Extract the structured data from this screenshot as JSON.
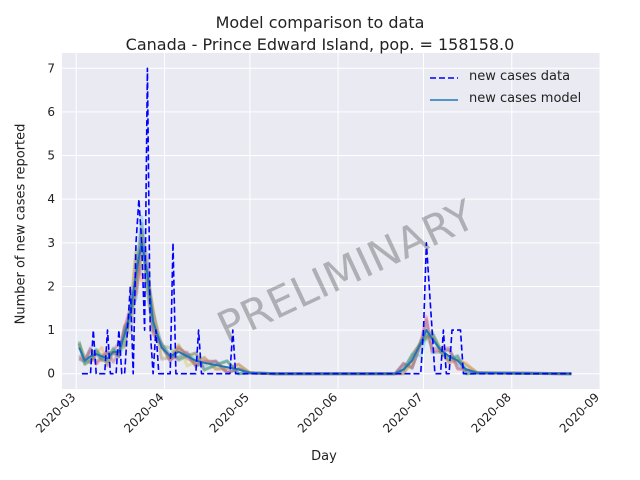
{
  "chart_data": {
    "type": "line",
    "title": "Model comparison to data",
    "subtitle": "Canada - Prince Edward Island, pop. = 158158.0",
    "xlabel": "Day",
    "ylabel": "Number of new cases reported",
    "x_ticks": [
      "2020-03",
      "2020-04",
      "2020-05",
      "2020-06",
      "2020-07",
      "2020-08",
      "2020-09"
    ],
    "y_ticks": [
      "0",
      "1",
      "2",
      "3",
      "4",
      "5",
      "6",
      "7"
    ],
    "xlim": [
      "2020-02-25",
      "2020-09-01"
    ],
    "ylim": [
      -0.35,
      7.35
    ],
    "grid": true,
    "legend_position": "top-right",
    "watermark": "PRELIMINARY",
    "colors": {
      "background": "#eaeaf2",
      "grid": "#ffffff",
      "data": "#0000ff",
      "model": "#1f77b4",
      "ensemble": [
        "#1f77b4",
        "#ff7f0e",
        "#2ca02c",
        "#d62728",
        "#9467bd",
        "#8c564b",
        "#e377c2",
        "#bcbd22",
        "#17becf",
        "#7f7f7f"
      ]
    },
    "series": [
      {
        "name": "new cases data",
        "style": "dashed",
        "points": [
          [
            "2020-03-03",
            0
          ],
          [
            "2020-03-06",
            0
          ],
          [
            "2020-03-07",
            1
          ],
          [
            "2020-03-08",
            0
          ],
          [
            "2020-03-11",
            0
          ],
          [
            "2020-03-12",
            1
          ],
          [
            "2020-03-13",
            0
          ],
          [
            "2020-03-15",
            0
          ],
          [
            "2020-03-16",
            1
          ],
          [
            "2020-03-17",
            0
          ],
          [
            "2020-03-18",
            0
          ],
          [
            "2020-03-19",
            1
          ],
          [
            "2020-03-20",
            2
          ],
          [
            "2020-03-21",
            0
          ],
          [
            "2020-03-22",
            3
          ],
          [
            "2020-03-23",
            4
          ],
          [
            "2020-03-24",
            3
          ],
          [
            "2020-03-25",
            1
          ],
          [
            "2020-03-26",
            7
          ],
          [
            "2020-03-27",
            1
          ],
          [
            "2020-03-28",
            0
          ],
          [
            "2020-03-29",
            1
          ],
          [
            "2020-03-30",
            0
          ],
          [
            "2020-04-03",
            0
          ],
          [
            "2020-04-04",
            3
          ],
          [
            "2020-04-05",
            0
          ],
          [
            "2020-04-12",
            0
          ],
          [
            "2020-04-13",
            1
          ],
          [
            "2020-04-14",
            0
          ],
          [
            "2020-04-24",
            0
          ],
          [
            "2020-04-25",
            1
          ],
          [
            "2020-04-26",
            0
          ],
          [
            "2020-06-30",
            0
          ],
          [
            "2020-07-01",
            1
          ],
          [
            "2020-07-02",
            3
          ],
          [
            "2020-07-03",
            2
          ],
          [
            "2020-07-04",
            1
          ],
          [
            "2020-07-05",
            0
          ],
          [
            "2020-07-07",
            0
          ],
          [
            "2020-07-08",
            1
          ],
          [
            "2020-07-09",
            0
          ],
          [
            "2020-07-10",
            0
          ],
          [
            "2020-07-11",
            1
          ],
          [
            "2020-07-14",
            1
          ],
          [
            "2020-07-15",
            0
          ],
          [
            "2020-08-22",
            0
          ]
        ]
      },
      {
        "name": "new cases model",
        "style": "solid",
        "points": [
          [
            "2020-03-02",
            0.6
          ],
          [
            "2020-03-04",
            0.3
          ],
          [
            "2020-03-06",
            0.4
          ],
          [
            "2020-03-08",
            0.45
          ],
          [
            "2020-03-10",
            0.4
          ],
          [
            "2020-03-12",
            0.35
          ],
          [
            "2020-03-14",
            0.5
          ],
          [
            "2020-03-16",
            0.5
          ],
          [
            "2020-03-18",
            0.9
          ],
          [
            "2020-03-20",
            1.4
          ],
          [
            "2020-03-22",
            2.3
          ],
          [
            "2020-03-24",
            3.0
          ],
          [
            "2020-03-26",
            2.3
          ],
          [
            "2020-03-28",
            1.2
          ],
          [
            "2020-03-31",
            0.6
          ],
          [
            "2020-04-03",
            0.4
          ],
          [
            "2020-04-06",
            0.5
          ],
          [
            "2020-04-09",
            0.4
          ],
          [
            "2020-04-12",
            0.3
          ],
          [
            "2020-04-15",
            0.25
          ],
          [
            "2020-04-19",
            0.2
          ],
          [
            "2020-04-23",
            0.15
          ],
          [
            "2020-04-27",
            0.1
          ],
          [
            "2020-05-01",
            0.02
          ],
          [
            "2020-05-10",
            0
          ],
          [
            "2020-06-21",
            0
          ],
          [
            "2020-06-24",
            0.1
          ],
          [
            "2020-06-27",
            0.3
          ],
          [
            "2020-06-30",
            0.7
          ],
          [
            "2020-07-02",
            1.0
          ],
          [
            "2020-07-04",
            0.8
          ],
          [
            "2020-07-07",
            0.55
          ],
          [
            "2020-07-10",
            0.4
          ],
          [
            "2020-07-13",
            0.3
          ],
          [
            "2020-07-16",
            0.1
          ],
          [
            "2020-07-20",
            0.02
          ],
          [
            "2020-08-22",
            0
          ]
        ]
      }
    ]
  }
}
